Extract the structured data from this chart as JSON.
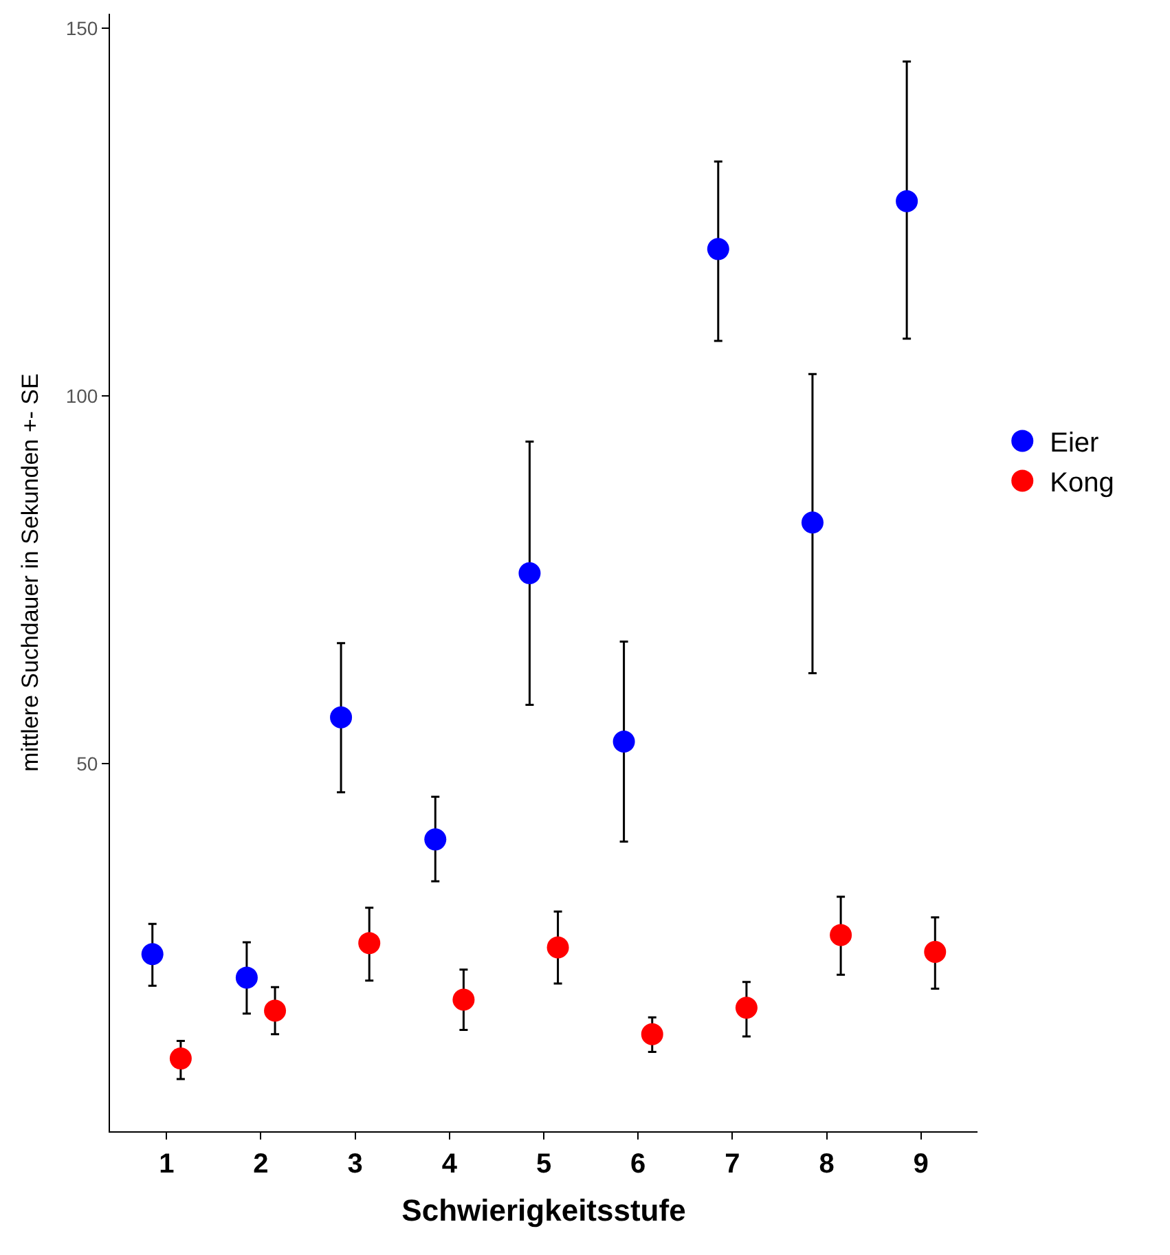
{
  "chart_data": {
    "type": "scatter",
    "xlabel": "Schwierigkeitsstufe",
    "ylabel": "mittlere Suchdauer in Sekunden +- SE",
    "categories": [
      "1",
      "2",
      "3",
      "4",
      "5",
      "6",
      "7",
      "8",
      "9"
    ],
    "series": [
      {
        "name": "Eier",
        "color": "#0000ff",
        "values": [
          24.1,
          20.9,
          56.3,
          39.7,
          75.9,
          53.0,
          120.0,
          82.8,
          126.5
        ],
        "errors": [
          [
            19.8,
            28.2
          ],
          [
            16.0,
            25.7
          ],
          [
            46.1,
            66.4
          ],
          [
            34.0,
            45.5
          ],
          [
            58.0,
            93.8
          ],
          [
            39.4,
            66.6
          ],
          [
            107.5,
            131.9
          ],
          [
            62.3,
            103.0
          ],
          [
            107.8,
            145.5
          ]
        ]
      },
      {
        "name": "Kong",
        "color": "#ff0000",
        "values": [
          9.9,
          16.4,
          25.6,
          17.9,
          25.0,
          13.2,
          16.8,
          26.7,
          24.4
        ],
        "errors": [
          [
            7.1,
            12.3
          ],
          [
            13.2,
            19.6
          ],
          [
            20.5,
            30.4
          ],
          [
            13.8,
            22.0
          ],
          [
            20.1,
            29.9
          ],
          [
            10.8,
            15.5
          ],
          [
            12.9,
            20.3
          ],
          [
            21.3,
            31.9
          ],
          [
            19.4,
            29.1
          ]
        ]
      }
    ],
    "ylim": [
      0,
      152
    ],
    "yticks": [
      50,
      100,
      150
    ],
    "legend": "right",
    "marker": "circle"
  }
}
